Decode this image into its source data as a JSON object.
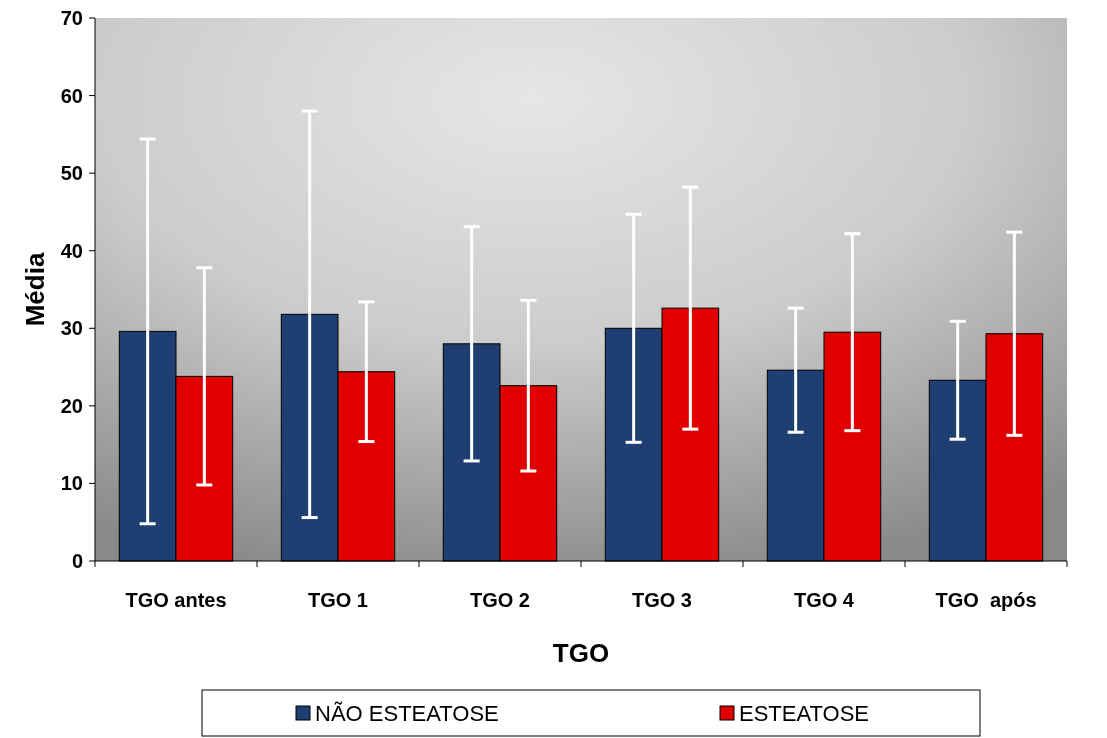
{
  "chart_data": {
    "type": "bar",
    "xlabel": "TGO",
    "ylabel": "Média",
    "categories": [
      "TGO antes",
      "TGO 1",
      "TGO 2",
      "TGO 3",
      "TGO 4",
      "TGO  após"
    ],
    "series": [
      {
        "name": "NÃO ESTEATOSE",
        "color": "#1f3f73",
        "values": [
          29.6,
          31.8,
          28.0,
          30.0,
          24.6,
          23.3
        ],
        "errors": [
          24.8,
          26.2,
          15.1,
          14.7,
          8.0,
          7.6
        ]
      },
      {
        "name": "ESTEATOSE",
        "color": "#e00000",
        "values": [
          23.8,
          24.4,
          22.6,
          32.6,
          29.5,
          29.3
        ],
        "errors": [
          14.0,
          9.0,
          11.0,
          15.6,
          12.7,
          13.1
        ]
      }
    ],
    "ylim": [
      0,
      70
    ],
    "yticks": [
      0,
      10,
      20,
      30,
      40,
      50,
      60,
      70
    ],
    "grid": false,
    "legend": "bottom"
  }
}
